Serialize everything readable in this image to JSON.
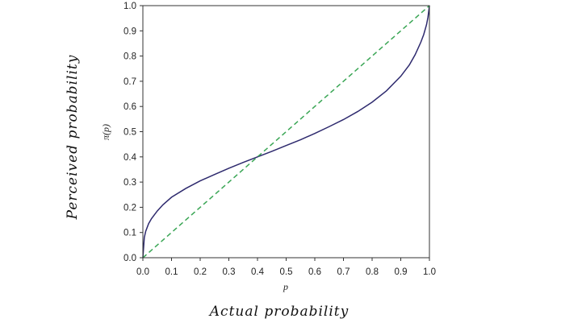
{
  "outer_labels": {
    "x": "Actual probability",
    "y": "Perceived probability"
  },
  "chart_data": {
    "type": "line",
    "title": "",
    "xlabel": "p",
    "ylabel": "π(p)",
    "xlim": [
      0.0,
      1.0
    ],
    "ylim": [
      0.0,
      1.0
    ],
    "x_ticks": [
      "0.0",
      "0.1",
      "0.2",
      "0.3",
      "0.4",
      "0.5",
      "0.6",
      "0.7",
      "0.8",
      "0.9",
      "1.0"
    ],
    "y_ticks": [
      "0.0",
      "0.1",
      "0.2",
      "0.3",
      "0.4",
      "0.5",
      "0.6",
      "0.7",
      "0.8",
      "0.9",
      "1.0"
    ],
    "grid": false,
    "legend": "none",
    "series": [
      {
        "style": "solid",
        "color": "#2e2a6e",
        "x": [
          0.0,
          0.005,
          0.01,
          0.02,
          0.03,
          0.05,
          0.07,
          0.1,
          0.15,
          0.2,
          0.25,
          0.3,
          0.35,
          0.4,
          0.45,
          0.5,
          0.55,
          0.6,
          0.65,
          0.7,
          0.75,
          0.8,
          0.85,
          0.9,
          0.93,
          0.95,
          0.97,
          0.98,
          0.99,
          0.995,
          1.0
        ],
        "y": [
          0.0,
          0.08,
          0.105,
          0.135,
          0.155,
          0.185,
          0.21,
          0.24,
          0.275,
          0.305,
          0.33,
          0.355,
          0.378,
          0.4,
          0.422,
          0.445,
          0.468,
          0.493,
          0.52,
          0.548,
          0.58,
          0.617,
          0.662,
          0.72,
          0.765,
          0.805,
          0.855,
          0.885,
          0.925,
          0.955,
          1.0
        ]
      },
      {
        "style": "dashed",
        "color": "#3aa655",
        "x": [
          0.0,
          1.0
        ],
        "y": [
          0.0,
          1.0
        ]
      }
    ]
  }
}
